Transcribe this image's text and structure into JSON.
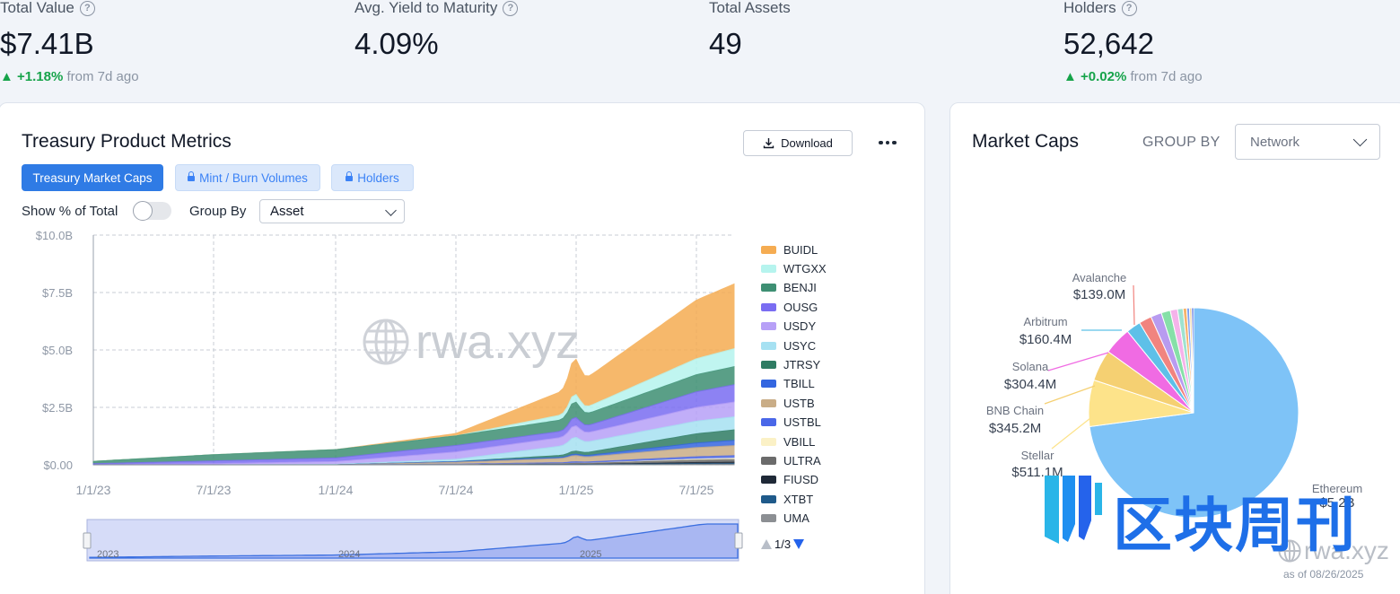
{
  "stats": [
    {
      "label": "Total Value",
      "value": "$7.41B",
      "change": "▲ +1.18%",
      "change_suffix": "from 7d ago",
      "has_help": true
    },
    {
      "label": "Avg. Yield to Maturity",
      "value": "4.09%",
      "change": "",
      "change_suffix": "",
      "has_help": true
    },
    {
      "label": "Total Assets",
      "value": "49",
      "change": "",
      "change_suffix": "",
      "has_help": false
    },
    {
      "label": "Holders",
      "value": "52,642",
      "change": "▲ +0.02%",
      "change_suffix": "from 7d ago",
      "has_help": true
    }
  ],
  "metrics_card": {
    "title": "Treasury Product Metrics",
    "download_label": "Download",
    "tabs": [
      {
        "label": "Treasury Market Caps",
        "active": true,
        "locked": false
      },
      {
        "label": "Mint / Burn Volumes",
        "active": false,
        "locked": true
      },
      {
        "label": "Holders",
        "active": false,
        "locked": true
      }
    ],
    "show_pct_label": "Show % of Total",
    "group_by_label": "Group By",
    "group_by_value": "Asset",
    "watermark": "rwa.xyz",
    "pager": "1/3"
  },
  "caps_card": {
    "title": "Market Caps",
    "group_by_label": "GROUP BY",
    "group_by_value": "Network",
    "as_of": "as of 08/26/2025",
    "watermark": "rwa.xyz"
  },
  "overlay_watermark": "区块周刊",
  "chart_data": [
    {
      "type": "area",
      "stacked": true,
      "title": "",
      "xlabel": "",
      "ylabel": "",
      "x": [
        "1/1/23",
        "7/1/23",
        "1/1/24",
        "7/1/24",
        "1/1/25",
        "7/1/25"
      ],
      "x_ticks": [
        "1/1/23",
        "7/1/23",
        "1/1/24",
        "7/1/24",
        "1/1/25",
        "7/1/25"
      ],
      "y_ticks": [
        "$0.00",
        "$2.5B",
        "$5.0B",
        "$7.5B",
        "$10.0B"
      ],
      "ylim": [
        0,
        10
      ],
      "y_unit": "B USD",
      "grid": true,
      "legend_position": "right",
      "series": [
        {
          "name": "BUIDL",
          "color": "#f5ac52",
          "values": [
            0,
            0,
            0,
            0.1,
            1.15,
            2.55
          ]
        },
        {
          "name": "WTGXX",
          "color": "#b6f4ee",
          "values": [
            0,
            0,
            0,
            0,
            0.25,
            0.7
          ]
        },
        {
          "name": "BENJI",
          "color": "#3e8f73",
          "values": [
            0.1,
            0.27,
            0.36,
            0.42,
            0.5,
            0.74
          ]
        },
        {
          "name": "OUSG",
          "color": "#7a6df2",
          "values": [
            0.05,
            0.12,
            0.16,
            0.28,
            0.27,
            0.68
          ]
        },
        {
          "name": "USDY",
          "color": "#b7a0f7",
          "values": [
            0,
            0.05,
            0.12,
            0.32,
            0.38,
            0.6
          ]
        },
        {
          "name": "USYC",
          "color": "#a6e1f2",
          "values": [
            0,
            0,
            0.02,
            0.1,
            0.45,
            0.55
          ]
        },
        {
          "name": "JTRSY",
          "color": "#2f7c63",
          "values": [
            0,
            0,
            0,
            0,
            0.1,
            0.4
          ]
        },
        {
          "name": "TBILL",
          "color": "#3466e0",
          "values": [
            0,
            0,
            0,
            0.03,
            0.05,
            0.2
          ]
        },
        {
          "name": "USTB",
          "color": "#c9ad87",
          "values": [
            0,
            0,
            0,
            0.08,
            0.2,
            0.4
          ]
        },
        {
          "name": "USTBL",
          "color": "#4a67e8",
          "values": [
            0,
            0,
            0,
            0.02,
            0.05,
            0.1
          ]
        },
        {
          "name": "VBILL",
          "color": "#fbf1c6",
          "values": [
            0,
            0,
            0,
            0,
            0,
            0.05
          ]
        },
        {
          "name": "ULTRA",
          "color": "#6b6b6b",
          "values": [
            0,
            0,
            0,
            0.01,
            0.04,
            0.1
          ]
        },
        {
          "name": "FIUSD",
          "color": "#1f2937",
          "values": [
            0,
            0,
            0,
            0,
            0,
            0.05
          ]
        },
        {
          "name": "XTBT",
          "color": "#1f5a8a",
          "values": [
            0,
            0,
            0,
            0,
            0.01,
            0.03
          ]
        },
        {
          "name": "UMA",
          "color": "#8c8f93",
          "values": [
            0,
            0,
            0,
            0,
            0,
            0.02
          ]
        }
      ],
      "navigator_labels": [
        "2023",
        "2024",
        "2025"
      ]
    },
    {
      "type": "pie",
      "title": "Market Caps",
      "slices": [
        {
          "label": "Ethereum",
          "value": 5.2,
          "value_label": "$5.2B",
          "color": "#7ec3f7",
          "show_label": true
        },
        {
          "label": "Stellar",
          "value": 0.5111,
          "value_label": "$511.1M",
          "color": "#fde38a",
          "show_label": true
        },
        {
          "label": "BNB Chain",
          "value": 0.3452,
          "value_label": "$345.2M",
          "color": "#f5d072",
          "show_label": true
        },
        {
          "label": "Solana",
          "value": 0.3044,
          "value_label": "$304.4M",
          "color": "#f06be3",
          "show_label": true
        },
        {
          "label": "Arbitrum",
          "value": 0.1604,
          "value_label": "$160.4M",
          "color": "#5ec0e8",
          "show_label": true
        },
        {
          "label": "Avalanche",
          "value": 0.139,
          "value_label": "$139.0M",
          "color": "#f1847f",
          "show_label": true
        },
        {
          "label": "",
          "value": 0.12,
          "value_label": "",
          "color": "#b89bf0",
          "show_label": false
        },
        {
          "label": "",
          "value": 0.1,
          "value_label": "",
          "color": "#86e0a8",
          "show_label": false
        },
        {
          "label": "",
          "value": 0.08,
          "value_label": "",
          "color": "#f5b3ea",
          "show_label": false
        },
        {
          "label": "",
          "value": 0.06,
          "value_label": "",
          "color": "#9fe2cf",
          "show_label": false
        },
        {
          "label": "",
          "value": 0.04,
          "value_label": "",
          "color": "#f7b26b",
          "show_label": false
        },
        {
          "label": "",
          "value": 0.03,
          "value_label": "",
          "color": "#7fa0f0",
          "show_label": false
        },
        {
          "label": "",
          "value": 0.025,
          "value_label": "",
          "color": "#f2d7a0",
          "show_label": false
        },
        {
          "label": "",
          "value": 0.02,
          "value_label": "",
          "color": "#3b5bdb",
          "show_label": false
        }
      ]
    }
  ]
}
